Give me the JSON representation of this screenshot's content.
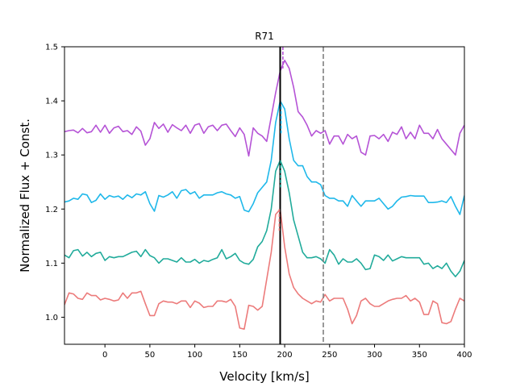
{
  "chart_data": {
    "type": "line",
    "title": "R71",
    "xlabel": "Velocity [km/s]",
    "ylabel": "Normalized Flux + Const.",
    "xlim": [
      -45,
      400
    ],
    "ylim": [
      0.95,
      1.5
    ],
    "xticks": [
      0,
      50,
      100,
      150,
      200,
      250,
      300,
      350,
      400
    ],
    "yticks": [
      1.0,
      1.1,
      1.2,
      1.3,
      1.4,
      1.5
    ],
    "xtick_labels": [
      "0",
      "50",
      "100",
      "150",
      "200",
      "250",
      "300",
      "350",
      "400"
    ],
    "ytick_labels": [
      "1.0",
      "1.1",
      "1.2",
      "1.3",
      "1.4",
      "1.5"
    ],
    "vlines": [
      {
        "name": "systemic-velocity",
        "x": 195,
        "style": "solid",
        "color": "#000000"
      },
      {
        "name": "reference-velocity",
        "x": 243,
        "style": "dashed",
        "color": "#808080"
      }
    ],
    "line_center_markers": [
      {
        "series": "purple",
        "x": 198,
        "ymin": 1.46,
        "ymax": 1.5
      },
      {
        "series": "cyan",
        "x": 196,
        "ymin": 1.34,
        "ymax": 1.39
      },
      {
        "series": "teal",
        "x": 195.5,
        "ymin": 1.24,
        "ymax": 1.29
      },
      {
        "series": "salmon",
        "x": 194,
        "ymin": 1.16,
        "ymax": 1.2
      }
    ],
    "series": [
      {
        "name": "purple",
        "color": "#b553d6",
        "x": [
          -45,
          -40,
          -35,
          -30,
          -25,
          -20,
          -15,
          -10,
          -5,
          0,
          5,
          10,
          15,
          20,
          25,
          30,
          35,
          40,
          45,
          50,
          55,
          60,
          65,
          70,
          75,
          80,
          85,
          90,
          95,
          100,
          105,
          110,
          115,
          120,
          125,
          130,
          135,
          140,
          145,
          150,
          155,
          160,
          165,
          170,
          175,
          180,
          185,
          190,
          195,
          200,
          205,
          210,
          215,
          220,
          225,
          230,
          235,
          240,
          245,
          250,
          255,
          260,
          265,
          270,
          275,
          280,
          285,
          290,
          295,
          300,
          305,
          310,
          315,
          320,
          325,
          330,
          335,
          340,
          345,
          350,
          355,
          360,
          365,
          370,
          375,
          380,
          385,
          390,
          395,
          400
        ],
        "values": [
          1.343,
          1.345,
          1.346,
          1.341,
          1.349,
          1.341,
          1.343,
          1.355,
          1.342,
          1.355,
          1.34,
          1.35,
          1.353,
          1.343,
          1.345,
          1.338,
          1.352,
          1.344,
          1.318,
          1.33,
          1.36,
          1.349,
          1.357,
          1.342,
          1.356,
          1.35,
          1.345,
          1.355,
          1.34,
          1.355,
          1.358,
          1.34,
          1.352,
          1.355,
          1.345,
          1.355,
          1.357,
          1.345,
          1.334,
          1.35,
          1.338,
          1.298,
          1.35,
          1.34,
          1.335,
          1.325,
          1.37,
          1.415,
          1.455,
          1.475,
          1.46,
          1.425,
          1.38,
          1.37,
          1.355,
          1.335,
          1.345,
          1.34,
          1.345,
          1.32,
          1.335,
          1.335,
          1.32,
          1.338,
          1.33,
          1.335,
          1.305,
          1.3,
          1.335,
          1.336,
          1.33,
          1.338,
          1.325,
          1.342,
          1.338,
          1.352,
          1.33,
          1.342,
          1.33,
          1.355,
          1.34,
          1.34,
          1.33,
          1.347,
          1.33,
          1.32,
          1.31,
          1.3,
          1.34,
          1.355
        ]
      },
      {
        "name": "cyan",
        "color": "#1fb8ea",
        "x": [
          -45,
          -40,
          -35,
          -30,
          -25,
          -20,
          -15,
          -10,
          -5,
          0,
          5,
          10,
          15,
          20,
          25,
          30,
          35,
          40,
          45,
          50,
          55,
          60,
          65,
          70,
          75,
          80,
          85,
          90,
          95,
          100,
          105,
          110,
          115,
          120,
          125,
          130,
          135,
          140,
          145,
          150,
          155,
          160,
          165,
          170,
          175,
          180,
          185,
          190,
          195,
          200,
          205,
          210,
          215,
          220,
          225,
          230,
          235,
          240,
          245,
          250,
          255,
          260,
          265,
          270,
          275,
          280,
          285,
          290,
          295,
          300,
          305,
          310,
          315,
          320,
          325,
          330,
          335,
          340,
          345,
          350,
          355,
          360,
          365,
          370,
          375,
          380,
          385,
          390,
          395,
          400
        ],
        "values": [
          1.213,
          1.215,
          1.22,
          1.218,
          1.228,
          1.226,
          1.212,
          1.216,
          1.228,
          1.218,
          1.225,
          1.222,
          1.224,
          1.218,
          1.226,
          1.221,
          1.228,
          1.226,
          1.232,
          1.21,
          1.196,
          1.225,
          1.222,
          1.226,
          1.232,
          1.22,
          1.234,
          1.236,
          1.228,
          1.232,
          1.22,
          1.226,
          1.226,
          1.226,
          1.23,
          1.232,
          1.228,
          1.226,
          1.22,
          1.223,
          1.198,
          1.195,
          1.21,
          1.23,
          1.24,
          1.25,
          1.29,
          1.36,
          1.4,
          1.385,
          1.33,
          1.29,
          1.28,
          1.28,
          1.26,
          1.25,
          1.25,
          1.245,
          1.225,
          1.22,
          1.22,
          1.215,
          1.215,
          1.205,
          1.225,
          1.215,
          1.205,
          1.215,
          1.215,
          1.215,
          1.22,
          1.21,
          1.2,
          1.205,
          1.215,
          1.222,
          1.223,
          1.225,
          1.224,
          1.224,
          1.224,
          1.212,
          1.212,
          1.213,
          1.215,
          1.212,
          1.223,
          1.205,
          1.19,
          1.225
        ]
      },
      {
        "name": "teal",
        "color": "#21ab9b",
        "x": [
          -45,
          -40,
          -35,
          -30,
          -25,
          -20,
          -15,
          -10,
          -5,
          0,
          5,
          10,
          15,
          20,
          25,
          30,
          35,
          40,
          45,
          50,
          55,
          60,
          65,
          70,
          75,
          80,
          85,
          90,
          95,
          100,
          105,
          110,
          115,
          120,
          125,
          130,
          135,
          140,
          145,
          150,
          155,
          160,
          165,
          170,
          175,
          180,
          185,
          190,
          195,
          200,
          205,
          210,
          215,
          220,
          225,
          230,
          235,
          240,
          245,
          250,
          255,
          260,
          265,
          270,
          275,
          280,
          285,
          290,
          295,
          300,
          305,
          310,
          315,
          320,
          325,
          330,
          335,
          340,
          345,
          350,
          355,
          360,
          365,
          370,
          375,
          380,
          385,
          390,
          395,
          400
        ],
        "values": [
          1.115,
          1.11,
          1.123,
          1.125,
          1.113,
          1.12,
          1.112,
          1.118,
          1.12,
          1.105,
          1.112,
          1.11,
          1.112,
          1.112,
          1.116,
          1.12,
          1.122,
          1.112,
          1.125,
          1.114,
          1.11,
          1.1,
          1.108,
          1.108,
          1.105,
          1.102,
          1.11,
          1.102,
          1.102,
          1.107,
          1.1,
          1.105,
          1.103,
          1.107,
          1.11,
          1.125,
          1.108,
          1.112,
          1.118,
          1.105,
          1.1,
          1.098,
          1.107,
          1.13,
          1.14,
          1.16,
          1.2,
          1.27,
          1.29,
          1.27,
          1.23,
          1.18,
          1.15,
          1.12,
          1.11,
          1.11,
          1.112,
          1.108,
          1.1,
          1.125,
          1.115,
          1.098,
          1.108,
          1.102,
          1.102,
          1.108,
          1.1,
          1.088,
          1.09,
          1.115,
          1.112,
          1.105,
          1.115,
          1.104,
          1.108,
          1.112,
          1.11,
          1.11,
          1.11,
          1.11,
          1.098,
          1.1,
          1.09,
          1.095,
          1.09,
          1.1,
          1.085,
          1.075,
          1.085,
          1.105
        ]
      },
      {
        "name": "salmon",
        "color": "#ec7b7b",
        "x": [
          -45,
          -40,
          -35,
          -30,
          -25,
          -20,
          -15,
          -10,
          -5,
          0,
          5,
          10,
          15,
          20,
          25,
          30,
          35,
          40,
          45,
          50,
          55,
          60,
          65,
          70,
          75,
          80,
          85,
          90,
          95,
          100,
          105,
          110,
          115,
          120,
          125,
          130,
          135,
          140,
          145,
          150,
          155,
          160,
          165,
          170,
          175,
          180,
          185,
          190,
          195,
          200,
          205,
          210,
          215,
          220,
          225,
          230,
          235,
          240,
          245,
          250,
          255,
          260,
          265,
          270,
          275,
          280,
          285,
          290,
          295,
          300,
          305,
          310,
          315,
          320,
          325,
          330,
          335,
          340,
          345,
          350,
          355,
          360,
          365,
          370,
          375,
          380,
          385,
          390,
          395,
          400
        ],
        "values": [
          1.023,
          1.045,
          1.043,
          1.035,
          1.033,
          1.045,
          1.04,
          1.04,
          1.032,
          1.035,
          1.033,
          1.03,
          1.032,
          1.045,
          1.035,
          1.045,
          1.045,
          1.048,
          1.025,
          1.003,
          1.003,
          1.025,
          1.03,
          1.028,
          1.028,
          1.025,
          1.03,
          1.03,
          1.018,
          1.03,
          1.026,
          1.018,
          1.02,
          1.02,
          1.03,
          1.03,
          1.028,
          1.033,
          1.02,
          0.98,
          0.978,
          1.022,
          1.02,
          1.013,
          1.02,
          1.07,
          1.12,
          1.19,
          1.2,
          1.13,
          1.08,
          1.055,
          1.043,
          1.035,
          1.03,
          1.025,
          1.03,
          1.028,
          1.042,
          1.03,
          1.035,
          1.035,
          1.035,
          1.015,
          0.988,
          1.003,
          1.03,
          1.035,
          1.025,
          1.02,
          1.02,
          1.025,
          1.03,
          1.033,
          1.035,
          1.035,
          1.04,
          1.03,
          1.035,
          1.028,
          1.005,
          1.005,
          1.03,
          1.025,
          0.99,
          0.988,
          0.992,
          1.015,
          1.035,
          1.03
        ]
      }
    ]
  }
}
